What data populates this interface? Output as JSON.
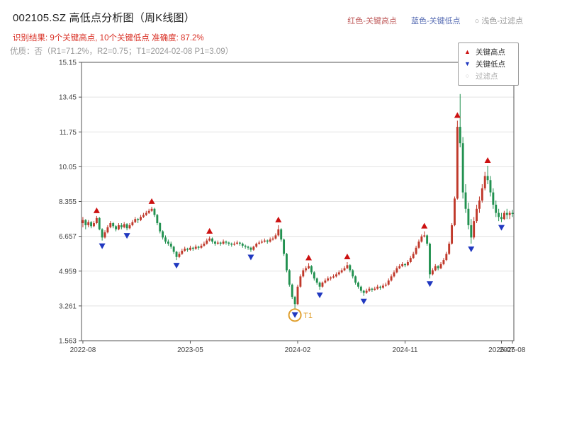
{
  "header": {
    "title": "002105.SZ 高低点分析图（周K线图）",
    "color_key": [
      {
        "label": "红色-关键高点",
        "color": "#bf5a5a"
      },
      {
        "label": "蓝色-关键低点",
        "color": "#5a6fb5"
      },
      {
        "label": "○ 浅色-过滤点",
        "color": "#999999"
      }
    ],
    "result_line": "识别结果: 9个关键高点, 10个关键低点  准确度: 87.2%",
    "result_color": "#d93025",
    "quality_line": "优质：否（R1=71.2%，R2=0.75；T1=2024-02-08 P1=3.09）"
  },
  "legend_box": {
    "items": [
      {
        "glyph": "▲",
        "label": "关键高点",
        "color": "#cc1111",
        "text_color": "#333333"
      },
      {
        "glyph": "▼",
        "label": "关键低点",
        "color": "#2038c0",
        "text_color": "#333333"
      },
      {
        "glyph": "○",
        "label": "过滤点",
        "color": "#c8c8c8",
        "text_color": "#aaaaaa"
      }
    ]
  },
  "chart_data": {
    "type": "candlestick",
    "symbol": "002105.SZ",
    "period": "weekly",
    "title": "002105.SZ 高低点分析图（周K线图）",
    "y_min": 1.563,
    "y_max": 15.147,
    "y_ticks": [
      {
        "v": 1.563,
        "label": "1.563"
      },
      {
        "v": 3.261,
        "label": "3.261"
      },
      {
        "v": 4.959,
        "label": "4.959"
      },
      {
        "v": 6.657,
        "label": "6.657"
      },
      {
        "v": 8.355,
        "label": "8.355"
      },
      {
        "v": 10.053,
        "label": "10.05"
      },
      {
        "v": 11.751,
        "label": "11.75"
      },
      {
        "v": 13.449,
        "label": "13.45"
      },
      {
        "v": 15.147,
        "label": "15.15"
      }
    ],
    "x_ticks": [
      {
        "week": 0,
        "label": "2022-08"
      },
      {
        "week": 39,
        "label": "2023-05"
      },
      {
        "week": 78,
        "label": "2024-02"
      },
      {
        "week": 117,
        "label": "2024-11"
      },
      {
        "week": 152,
        "label": "2025-07"
      },
      {
        "week": 156,
        "label": "2025-08"
      }
    ],
    "colors": {
      "up": "#c0392b",
      "down": "#229150",
      "grid": "#e3e3e3",
      "axis": "#555555",
      "tick_text": "#444444",
      "key_high": "#cc1111",
      "key_low": "#2038c0",
      "t1": "#e0a030"
    },
    "candles": [
      [
        7.3,
        7.6,
        7.1,
        7.45
      ],
      [
        7.45,
        7.5,
        7.0,
        7.2
      ],
      [
        7.2,
        7.45,
        7.1,
        7.35
      ],
      [
        7.35,
        7.4,
        7.05,
        7.15
      ],
      [
        7.15,
        7.4,
        7.1,
        7.3
      ],
      [
        7.3,
        7.65,
        7.25,
        7.55
      ],
      [
        7.55,
        7.6,
        6.95,
        7.0
      ],
      [
        7.0,
        7.05,
        6.45,
        6.6
      ],
      [
        6.6,
        6.95,
        6.55,
        6.85
      ],
      [
        6.85,
        7.2,
        6.8,
        7.1
      ],
      [
        7.1,
        7.4,
        7.05,
        7.3
      ],
      [
        7.3,
        7.35,
        7.05,
        7.15
      ],
      [
        7.15,
        7.2,
        6.9,
        7.0
      ],
      [
        7.0,
        7.3,
        6.95,
        7.2
      ],
      [
        7.2,
        7.3,
        7.0,
        7.1
      ],
      [
        7.1,
        7.35,
        7.05,
        7.25
      ],
      [
        7.25,
        7.3,
        6.95,
        7.05
      ],
      [
        7.05,
        7.3,
        7.0,
        7.2
      ],
      [
        7.2,
        7.45,
        7.15,
        7.35
      ],
      [
        7.35,
        7.6,
        7.3,
        7.5
      ],
      [
        7.5,
        7.55,
        7.3,
        7.45
      ],
      [
        7.45,
        7.7,
        7.4,
        7.6
      ],
      [
        7.6,
        7.8,
        7.55,
        7.7
      ],
      [
        7.7,
        7.9,
        7.65,
        7.8
      ],
      [
        7.8,
        8.0,
        7.75,
        7.9
      ],
      [
        7.9,
        8.1,
        7.85,
        8.0
      ],
      [
        8.0,
        8.05,
        7.6,
        7.7
      ],
      [
        7.7,
        7.75,
        7.2,
        7.3
      ],
      [
        7.3,
        7.35,
        6.8,
        6.9
      ],
      [
        6.9,
        6.95,
        6.5,
        6.6
      ],
      [
        6.6,
        6.7,
        6.3,
        6.4
      ],
      [
        6.4,
        6.5,
        6.2,
        6.3
      ],
      [
        6.3,
        6.4,
        6.05,
        6.15
      ],
      [
        6.15,
        6.2,
        5.8,
        5.9
      ],
      [
        5.9,
        5.95,
        5.5,
        5.65
      ],
      [
        5.65,
        5.9,
        5.6,
        5.8
      ],
      [
        5.8,
        6.05,
        5.75,
        5.95
      ],
      [
        5.95,
        6.15,
        5.9,
        6.05
      ],
      [
        6.05,
        6.1,
        5.9,
        6.0
      ],
      [
        6.0,
        6.2,
        5.95,
        6.1
      ],
      [
        6.1,
        6.15,
        5.95,
        6.05
      ],
      [
        6.05,
        6.25,
        6.0,
        6.15
      ],
      [
        6.15,
        6.2,
        6.0,
        6.1
      ],
      [
        6.1,
        6.3,
        6.05,
        6.2
      ],
      [
        6.2,
        6.4,
        6.15,
        6.3
      ],
      [
        6.3,
        6.55,
        6.25,
        6.45
      ],
      [
        6.45,
        6.65,
        6.4,
        6.55
      ],
      [
        6.55,
        6.6,
        6.3,
        6.4
      ],
      [
        6.4,
        6.45,
        6.2,
        6.3
      ],
      [
        6.3,
        6.45,
        6.25,
        6.35
      ],
      [
        6.35,
        6.4,
        6.2,
        6.3
      ],
      [
        6.3,
        6.5,
        6.25,
        6.4
      ],
      [
        6.4,
        6.45,
        6.25,
        6.35
      ],
      [
        6.35,
        6.4,
        6.2,
        6.3
      ],
      [
        6.3,
        6.35,
        6.15,
        6.25
      ],
      [
        6.25,
        6.4,
        6.2,
        6.3
      ],
      [
        6.3,
        6.45,
        6.25,
        6.35
      ],
      [
        6.35,
        6.4,
        6.2,
        6.3
      ],
      [
        6.3,
        6.35,
        6.1,
        6.2
      ],
      [
        6.2,
        6.25,
        6.05,
        6.15
      ],
      [
        6.15,
        6.2,
        6.0,
        6.1
      ],
      [
        6.1,
        6.15,
        5.9,
        6.0
      ],
      [
        6.0,
        6.2,
        5.95,
        6.15
      ],
      [
        6.15,
        6.35,
        6.1,
        6.3
      ],
      [
        6.3,
        6.45,
        6.25,
        6.35
      ],
      [
        6.35,
        6.5,
        6.3,
        6.4
      ],
      [
        6.4,
        6.55,
        6.35,
        6.45
      ],
      [
        6.45,
        6.5,
        6.3,
        6.4
      ],
      [
        6.4,
        6.6,
        6.35,
        6.5
      ],
      [
        6.5,
        6.65,
        6.45,
        6.55
      ],
      [
        6.55,
        6.8,
        6.5,
        6.7
      ],
      [
        6.7,
        7.2,
        6.65,
        7.0
      ],
      [
        7.0,
        7.05,
        6.4,
        6.5
      ],
      [
        6.5,
        6.55,
        5.7,
        5.8
      ],
      [
        5.8,
        5.85,
        4.9,
        5.0
      ],
      [
        5.0,
        5.05,
        4.2,
        4.3
      ],
      [
        4.3,
        4.35,
        3.6,
        3.7
      ],
      [
        3.7,
        3.75,
        3.09,
        3.35
      ],
      [
        3.35,
        4.3,
        3.3,
        4.2
      ],
      [
        4.2,
        4.8,
        4.15,
        4.7
      ],
      [
        4.7,
        5.1,
        4.65,
        5.0
      ],
      [
        5.0,
        5.2,
        4.9,
        5.1
      ],
      [
        5.1,
        5.35,
        5.05,
        5.2
      ],
      [
        5.2,
        5.25,
        4.8,
        4.9
      ],
      [
        4.9,
        4.95,
        4.5,
        4.6
      ],
      [
        4.6,
        4.65,
        4.3,
        4.4
      ],
      [
        4.4,
        4.45,
        4.05,
        4.2
      ],
      [
        4.2,
        4.45,
        4.15,
        4.4
      ],
      [
        4.4,
        4.6,
        4.35,
        4.5
      ],
      [
        4.5,
        4.7,
        4.45,
        4.6
      ],
      [
        4.6,
        4.7,
        4.5,
        4.65
      ],
      [
        4.65,
        4.8,
        4.6,
        4.7
      ],
      [
        4.7,
        4.9,
        4.65,
        4.8
      ],
      [
        4.8,
        5.0,
        4.75,
        4.9
      ],
      [
        4.9,
        5.1,
        4.85,
        5.0
      ],
      [
        5.0,
        5.2,
        4.95,
        5.1
      ],
      [
        5.1,
        5.4,
        5.05,
        5.25
      ],
      [
        5.25,
        5.3,
        4.9,
        5.0
      ],
      [
        5.0,
        5.05,
        4.6,
        4.7
      ],
      [
        4.7,
        4.75,
        4.3,
        4.4
      ],
      [
        4.4,
        4.45,
        4.1,
        4.2
      ],
      [
        4.2,
        4.25,
        3.9,
        4.0
      ],
      [
        4.0,
        4.05,
        3.75,
        3.9
      ],
      [
        3.9,
        4.1,
        3.85,
        4.0
      ],
      [
        4.0,
        4.2,
        3.95,
        4.1
      ],
      [
        4.1,
        4.15,
        3.95,
        4.05
      ],
      [
        4.05,
        4.2,
        4.0,
        4.1
      ],
      [
        4.1,
        4.3,
        4.05,
        4.2
      ],
      [
        4.2,
        4.25,
        4.05,
        4.15
      ],
      [
        4.15,
        4.35,
        4.1,
        4.25
      ],
      [
        4.25,
        4.4,
        4.2,
        4.3
      ],
      [
        4.3,
        4.6,
        4.25,
        4.5
      ],
      [
        4.5,
        4.8,
        4.45,
        4.7
      ],
      [
        4.7,
        5.0,
        4.65,
        4.9
      ],
      [
        4.9,
        5.2,
        4.85,
        5.1
      ],
      [
        5.1,
        5.3,
        5.05,
        5.2
      ],
      [
        5.2,
        5.4,
        5.15,
        5.3
      ],
      [
        5.3,
        5.35,
        5.15,
        5.25
      ],
      [
        5.25,
        5.5,
        5.2,
        5.4
      ],
      [
        5.4,
        5.7,
        5.35,
        5.6
      ],
      [
        5.6,
        5.9,
        5.55,
        5.8
      ],
      [
        5.8,
        6.2,
        5.75,
        6.1
      ],
      [
        6.1,
        6.5,
        6.05,
        6.4
      ],
      [
        6.4,
        6.75,
        6.35,
        6.65
      ],
      [
        6.65,
        6.9,
        6.6,
        6.7
      ],
      [
        6.7,
        6.75,
        6.2,
        6.3
      ],
      [
        6.3,
        6.35,
        4.6,
        4.8
      ],
      [
        4.8,
        5.1,
        4.75,
        5.0
      ],
      [
        5.0,
        5.3,
        4.95,
        5.2
      ],
      [
        5.2,
        5.25,
        5.0,
        5.1
      ],
      [
        5.1,
        5.4,
        5.05,
        5.3
      ],
      [
        5.3,
        5.6,
        5.25,
        5.5
      ],
      [
        5.5,
        5.9,
        5.45,
        5.8
      ],
      [
        5.8,
        6.4,
        5.75,
        6.3
      ],
      [
        6.3,
        7.3,
        6.25,
        7.2
      ],
      [
        7.2,
        8.6,
        7.15,
        8.5
      ],
      [
        8.5,
        12.3,
        8.45,
        12.0
      ],
      [
        12.0,
        13.6,
        11.0,
        11.2
      ],
      [
        11.2,
        11.5,
        8.5,
        8.8
      ],
      [
        8.8,
        9.2,
        7.8,
        8.0
      ],
      [
        8.0,
        8.3,
        7.0,
        7.2
      ],
      [
        7.2,
        7.5,
        6.3,
        6.6
      ],
      [
        6.6,
        7.6,
        6.5,
        7.4
      ],
      [
        7.4,
        8.2,
        7.3,
        8.0
      ],
      [
        8.0,
        8.6,
        7.8,
        8.4
      ],
      [
        8.4,
        9.2,
        8.3,
        9.0
      ],
      [
        9.0,
        9.8,
        8.9,
        9.6
      ],
      [
        9.6,
        10.1,
        9.2,
        9.4
      ],
      [
        9.4,
        9.6,
        8.6,
        8.8
      ],
      [
        8.8,
        9.0,
        8.0,
        8.2
      ],
      [
        8.2,
        8.4,
        7.6,
        7.8
      ],
      [
        7.8,
        8.0,
        7.4,
        7.6
      ],
      [
        7.6,
        7.8,
        7.35,
        7.5
      ],
      [
        7.5,
        7.9,
        7.45,
        7.8
      ],
      [
        7.8,
        8.0,
        7.5,
        7.7
      ],
      [
        7.7,
        7.9,
        7.5,
        7.8
      ],
      [
        7.8,
        7.95,
        7.6,
        7.75
      ]
    ],
    "key_highs": [
      5,
      25,
      46,
      71,
      82,
      96,
      124,
      136,
      147
    ],
    "key_lows": [
      7,
      16,
      34,
      61,
      77,
      86,
      102,
      126,
      141,
      152
    ],
    "t1": {
      "week": 77,
      "label": "T1",
      "price": 3.09,
      "date": "2024-02-08"
    }
  }
}
